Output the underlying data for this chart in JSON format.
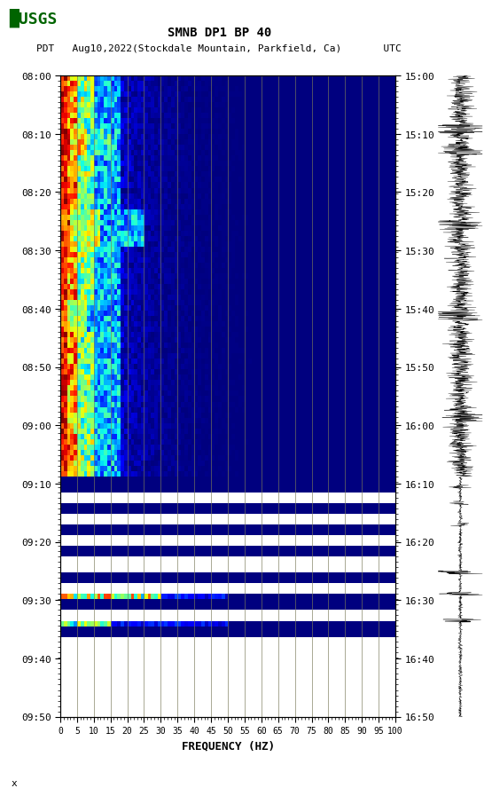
{
  "title_line1": "SMNB DP1 BP 40",
  "title_line2": "PDT   Aug10,2022(Stockdale Mountain, Parkfield, Ca)       UTC",
  "xlabel": "FREQUENCY (HZ)",
  "freq_ticks": [
    0,
    5,
    10,
    15,
    20,
    25,
    30,
    35,
    40,
    45,
    50,
    55,
    60,
    65,
    70,
    75,
    80,
    85,
    90,
    95,
    100
  ],
  "time_left_labels": [
    "08:00",
    "08:10",
    "08:20",
    "08:30",
    "08:40",
    "08:50",
    "09:00",
    "09:10",
    "09:20",
    "09:30",
    "09:40",
    "09:50"
  ],
  "time_right_labels": [
    "15:00",
    "15:10",
    "15:20",
    "15:30",
    "15:40",
    "15:50",
    "16:00",
    "16:10",
    "16:20",
    "16:30",
    "16:40",
    "16:50"
  ],
  "n_time_bins": 120,
  "n_freq_bins": 100,
  "background_color": "#ffffff",
  "spectrogram_bg": "#00008B",
  "usgs_logo_color": "#006400",
  "vertical_grid_lines": [
    5,
    10,
    15,
    20,
    25,
    30,
    35,
    40,
    45,
    50,
    55,
    60,
    65,
    70,
    75,
    80,
    85,
    90,
    95,
    100
  ]
}
